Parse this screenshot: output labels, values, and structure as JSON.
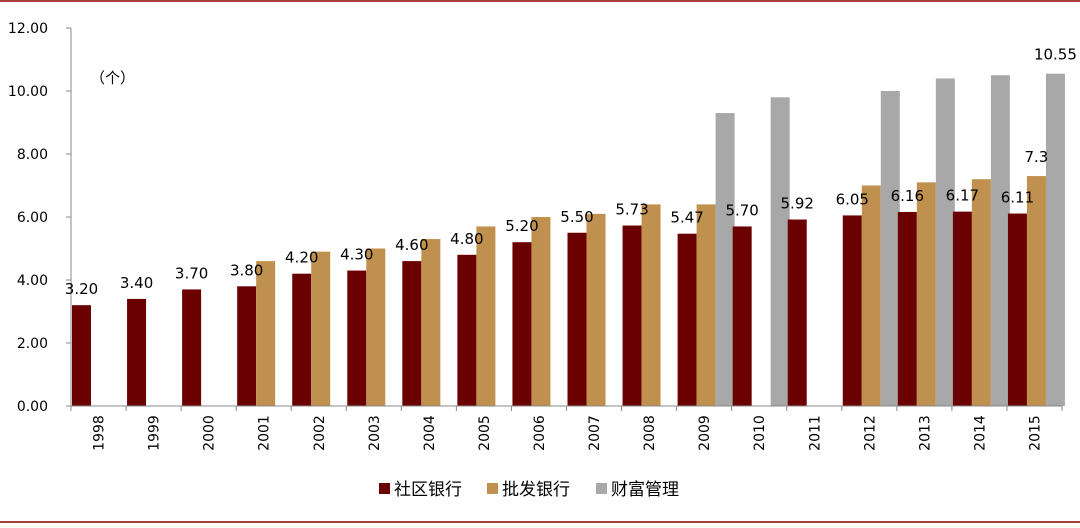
{
  "chart_data": {
    "type": "bar",
    "unit_label": "（个）",
    "categories": [
      "1998",
      "1999",
      "2000",
      "2001",
      "2002",
      "2003",
      "2004",
      "2005",
      "2006",
      "2007",
      "2008",
      "2009",
      "2010",
      "2011",
      "2012",
      "2013",
      "2014",
      "2015"
    ],
    "ylim": [
      0,
      12
    ],
    "yticks": [
      "0.00",
      "2.00",
      "4.00",
      "6.00",
      "8.00",
      "10.00",
      "12.00"
    ],
    "grid": false,
    "legend_position": "bottom",
    "series": [
      {
        "name": "社区银行",
        "color": "#6B0000",
        "values": [
          3.2,
          3.4,
          3.7,
          3.8,
          4.2,
          4.3,
          4.6,
          4.8,
          5.2,
          5.5,
          5.73,
          5.47,
          5.7,
          5.92,
          6.05,
          6.16,
          6.17,
          6.11
        ],
        "labels": [
          "3.20",
          "3.40",
          "3.70",
          "3.80",
          "4.20",
          "4.30",
          "4.60",
          "4.80",
          "5.20",
          "5.50",
          "5.73",
          "5.47",
          "5.70",
          "5.92",
          "6.05",
          "6.16",
          "6.17",
          "6.11"
        ]
      },
      {
        "name": "批发银行",
        "color": "#C0914E",
        "values": [
          null,
          null,
          null,
          4.6,
          4.9,
          5.0,
          5.3,
          5.7,
          6.0,
          6.1,
          6.4,
          6.4,
          null,
          null,
          7.0,
          7.1,
          7.2,
          7.3
        ],
        "labels": [
          null,
          null,
          null,
          null,
          null,
          null,
          null,
          null,
          null,
          null,
          null,
          null,
          null,
          null,
          null,
          null,
          null,
          "7.3"
        ]
      },
      {
        "name": "财富管理",
        "color": "#A8A8A8",
        "values": [
          null,
          null,
          null,
          null,
          null,
          null,
          null,
          null,
          null,
          null,
          null,
          9.3,
          9.8,
          null,
          10.0,
          10.4,
          10.5,
          10.55
        ],
        "labels": [
          null,
          null,
          null,
          null,
          null,
          null,
          null,
          null,
          null,
          null,
          null,
          null,
          null,
          null,
          null,
          null,
          null,
          "10.55"
        ]
      }
    ]
  }
}
